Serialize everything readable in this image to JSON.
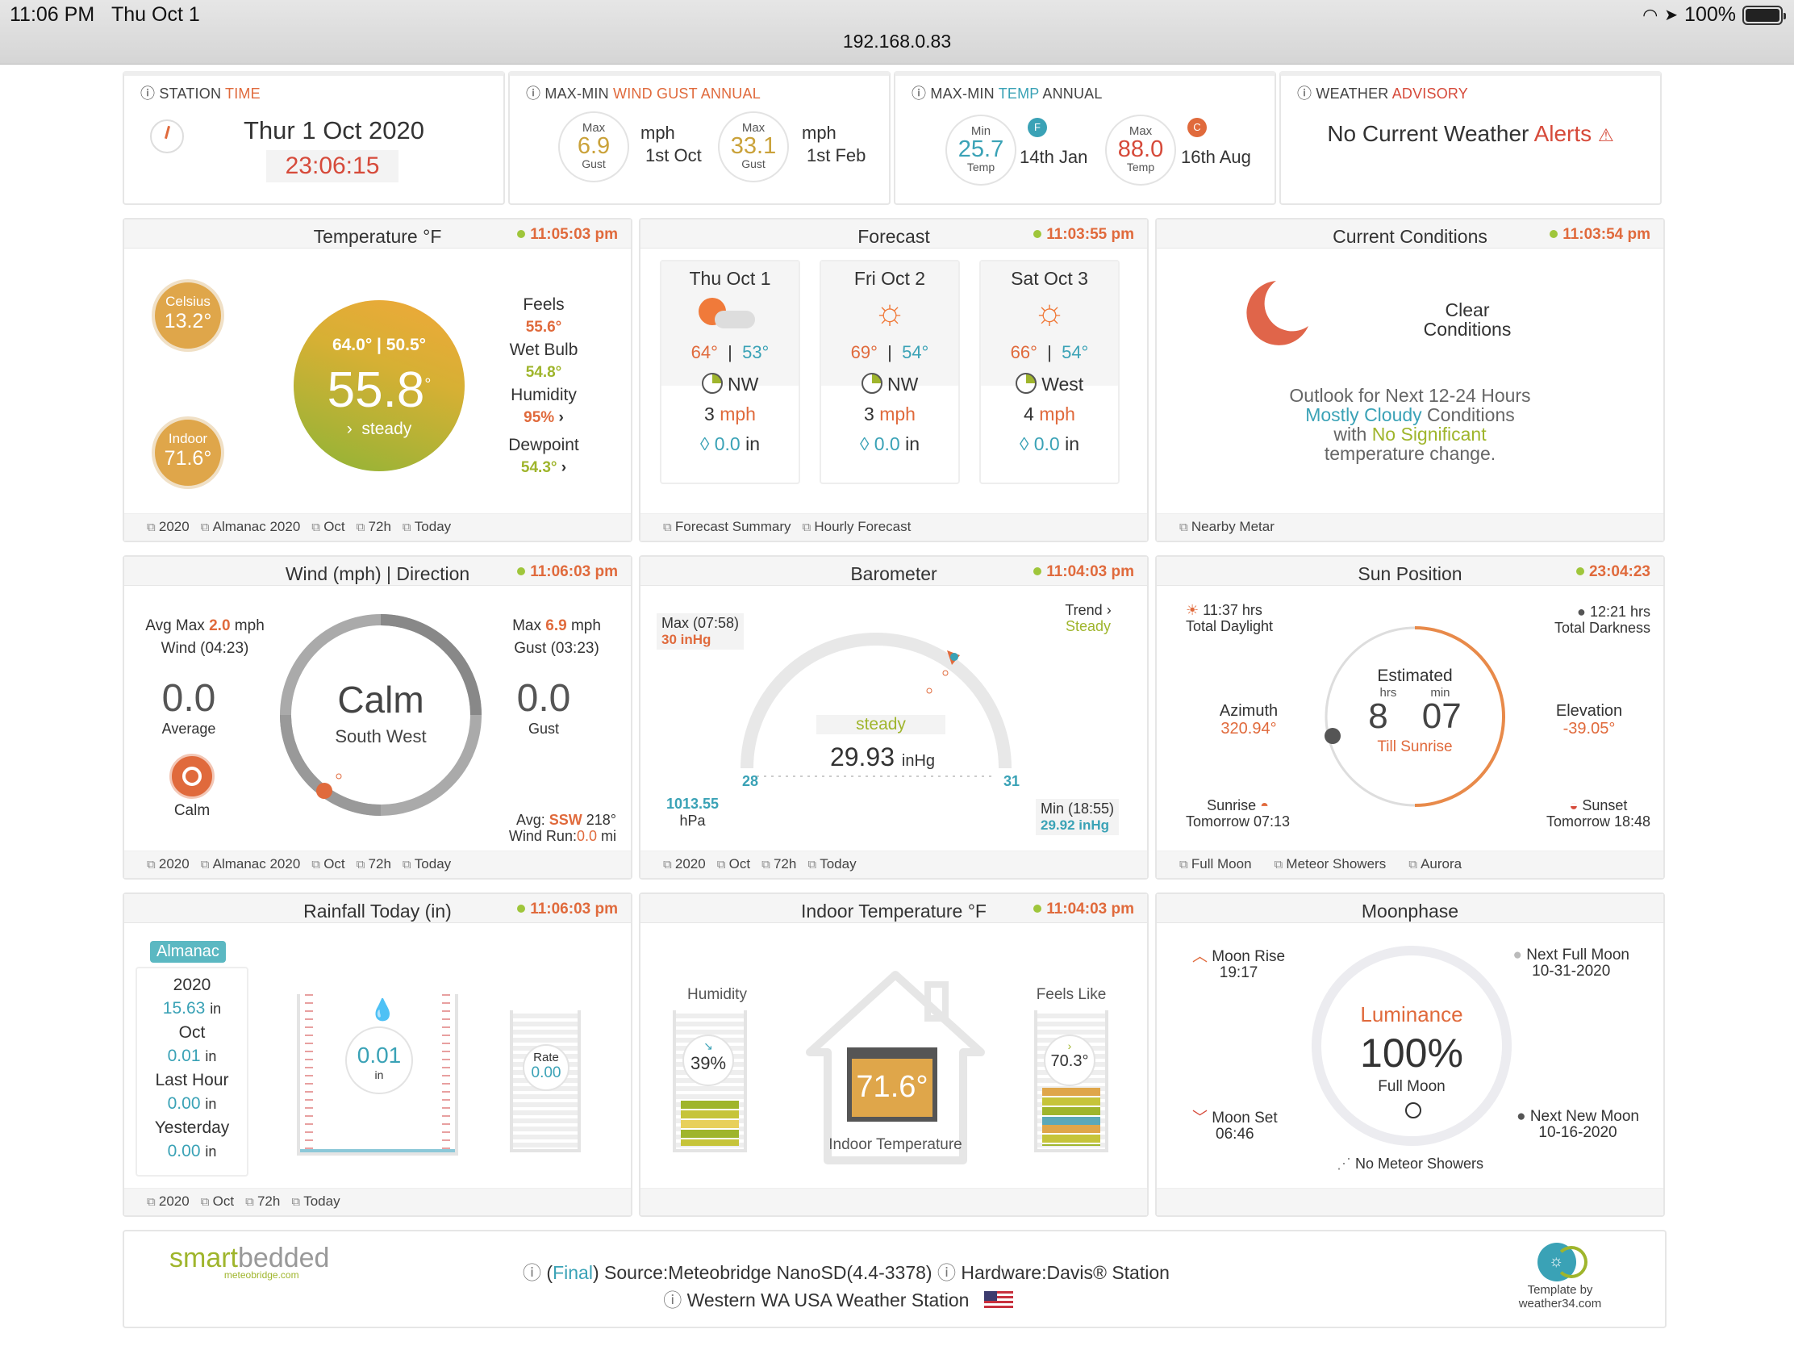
{
  "status": {
    "time": "11:06 PM",
    "date": "Thu Oct 1",
    "url": "192.168.0.83",
    "battery": "100%"
  },
  "top": {
    "station": {
      "title_a": "STATION ",
      "title_b": "TIME",
      "date": "Thur 1 Oct 2020",
      "time": "23:06:15"
    },
    "wind": {
      "title_a": "MAX-MIN ",
      "title_b": "WIND GUST ANNUAL",
      "c1": {
        "label": "Max",
        "value": "6.9",
        "sub": "Gust",
        "unit": "mph",
        "date": "1st Oct"
      },
      "c2": {
        "label": "Max",
        "value": "33.1",
        "sub": "Gust",
        "unit": "mph",
        "date": "1st Feb"
      }
    },
    "temp": {
      "title_a": "MAX-MIN ",
      "title_b": "TEMP",
      "title_c": " ANNUAL",
      "c1": {
        "label": "Min",
        "value": "25.7",
        "sub": "Temp",
        "badge": "F",
        "date": "14th Jan"
      },
      "c2": {
        "label": "Max",
        "value": "88.0",
        "sub": "Temp",
        "badge": "C",
        "date": "16th Aug"
      }
    },
    "advisory": {
      "title_a": "WEATHER ",
      "title_b": "ADVISORY",
      "text_a": "No Current Weather ",
      "text_b": "Alerts",
      "icon": "⚠"
    }
  },
  "temperature": {
    "title": "Temperature °F",
    "stamp": "11:05:03 pm",
    "celsius_label": "Celsius",
    "celsius": "13.2°",
    "indoor_label": "Indoor",
    "indoor": "71.6°",
    "hilo": "64.0° | 50.5°",
    "value": "55.8",
    "deg": "°",
    "trend": "steady",
    "feels_label": "Feels",
    "feels": "55.6°",
    "wetbulb_label": "Wet Bulb",
    "wetbulb": "54.8°",
    "humidity_label": "Humidity",
    "humidity": "95%",
    "dewpoint_label": "Dewpoint",
    "dewpoint": "54.3°",
    "footer": [
      "2020",
      "Almanac 2020",
      "Oct",
      "72h",
      "Today"
    ]
  },
  "forecast": {
    "title": "Forecast",
    "stamp": "11:03:55 pm",
    "days": [
      {
        "day": "Thu Oct 1",
        "hi": "64°",
        "lo": "53°",
        "dir": "NW",
        "wind": "3",
        "unit": "mph",
        "rain": "0.0",
        "rain_unit": "in",
        "icon": "partly-cloudy-night-icon"
      },
      {
        "day": "Fri Oct 2",
        "hi": "69°",
        "lo": "54°",
        "dir": "NW",
        "wind": "3",
        "unit": "mph",
        "rain": "0.0",
        "rain_unit": "in",
        "icon": "sun-icon"
      },
      {
        "day": "Sat Oct 3",
        "hi": "66°",
        "lo": "54°",
        "dir": "West",
        "wind": "4",
        "unit": "mph",
        "rain": "0.0",
        "rain_unit": "in",
        "icon": "sun-icon"
      }
    ],
    "footer": [
      "Forecast Summary",
      "Hourly Forecast"
    ]
  },
  "conditions": {
    "title": "Current Conditions",
    "stamp": "11:03:54 pm",
    "cond1": "Clear",
    "cond2": "Conditions",
    "outlook": "Outlook for Next 12-24 Hours",
    "l2a": "Mostly Cloudy",
    "l2b": " Conditions",
    "l3a": "with ",
    "l3b": "No Significant",
    "l4": "temperature change.",
    "footer": [
      "Nearby Metar"
    ]
  },
  "wind": {
    "title": "Wind (mph) | Direction",
    "stamp": "11:06:03 pm",
    "avgmax_a": "Avg Max ",
    "avgmax_v": "2.0",
    "avgmax_u": " mph",
    "avgmax_sub": "Wind (04:23)",
    "max_a": "Max ",
    "max_v": "6.9",
    "max_u": " mph",
    "max_sub": "Gust (03:23)",
    "avg": "0.0",
    "avg_label": "Average",
    "gust": "0.0",
    "gust_label": "Gust",
    "calm_label": "Calm",
    "center": "Calm",
    "dir": "South West",
    "avg_dir_a": "Avg: ",
    "avg_dir_v": "SSW",
    "avg_dir_b": " 218°",
    "run_a": "Wind Run:",
    "run_v": "0.0",
    "run_b": " mi",
    "footer": [
      "2020",
      "Almanac 2020",
      "Oct",
      "72h",
      "Today"
    ]
  },
  "barometer": {
    "title": "Barometer",
    "stamp": "11:04:03 pm",
    "max_label": "Max (07:58)",
    "max": "30 inHg",
    "trend_label": "Trend",
    "trend": "Steady",
    "steady": "steady",
    "value": "29.93",
    "unit": "inHg",
    "scale_min": "28",
    "scale_max": "31",
    "hpa": "1013.55",
    "hpa_unit": "hPa",
    "min_label": "Min (18:55)",
    "min": "29.92 inHg",
    "footer": [
      "2020",
      "Oct",
      "72h",
      "Today"
    ]
  },
  "sun": {
    "title": "Sun Position",
    "stamp": "23:04:23",
    "daylight": "11:37 hrs",
    "daylight_label": "Total Daylight",
    "darkness": "12:21 hrs",
    "darkness_label": "Total Darkness",
    "estimated": "Estimated",
    "hrs_label": "hrs",
    "min_label": "min",
    "hrs": "8",
    "min": "07",
    "till": "Till Sunrise",
    "az_label": "Azimuth",
    "az": "320.94°",
    "el_label": "Elevation",
    "el": "-39.05°",
    "sunrise_label": "Sunrise",
    "sunrise": "Tomorrow 07:13",
    "sunset_label": "Sunset",
    "sunset": "Tomorrow 18:48",
    "footer": [
      "Full Moon",
      "Meteor Showers",
      "Aurora"
    ]
  },
  "rain": {
    "title": "Rainfall Today (in)",
    "stamp": "11:06:03 pm",
    "almanac": "Almanac",
    "y_label": "2020",
    "y": "15.63",
    "m_label": "Oct",
    "m": "0.01",
    "h_label": "Last Hour",
    "h": "0.00",
    "yd_label": "Yesterday",
    "yd": "0.00",
    "unit": "in",
    "today": "0.01",
    "today_unit": "in",
    "rate_label": "Rate",
    "rate": "0.00",
    "footer": [
      "2020",
      "Oct",
      "72h",
      "Today"
    ]
  },
  "indoor": {
    "title": "Indoor Temperature °F",
    "stamp": "11:04:03 pm",
    "hum_label": "Humidity",
    "hum": "39%",
    "feels_label": "Feels Like",
    "feels": "70.3°",
    "value": "71.6°",
    "label": "Indoor Temperature"
  },
  "moon": {
    "title": "Moonphase",
    "rise_label": "Moon Rise",
    "rise": "19:17",
    "set_label": "Moon Set",
    "set": "06:46",
    "nf_label": "Next Full Moon",
    "nf": "10-31-2020",
    "nn_label": "Next New Moon",
    "nn": "10-16-2020",
    "lum_label": "Luminance",
    "lum": "100%",
    "phase": "Full Moon",
    "showers": "No Meteor Showers"
  },
  "footer": {
    "logo_a": "smart",
    "logo_b": "bedded",
    "logo_sub": "meteobridge.com",
    "final": "Final",
    "source": ") Source:Meteobridge NanoSD(4.4-3378)",
    "hardware": "Hardware:Davis® Station",
    "station": "Western WA USA Weather Station",
    "tmpl1": "Template by",
    "tmpl2": "weather34.com"
  },
  "colors": {
    "orange": "#e06a3c",
    "green": "#9fb52c",
    "teal": "#3aa2b6",
    "red": "#d64a3a"
  }
}
